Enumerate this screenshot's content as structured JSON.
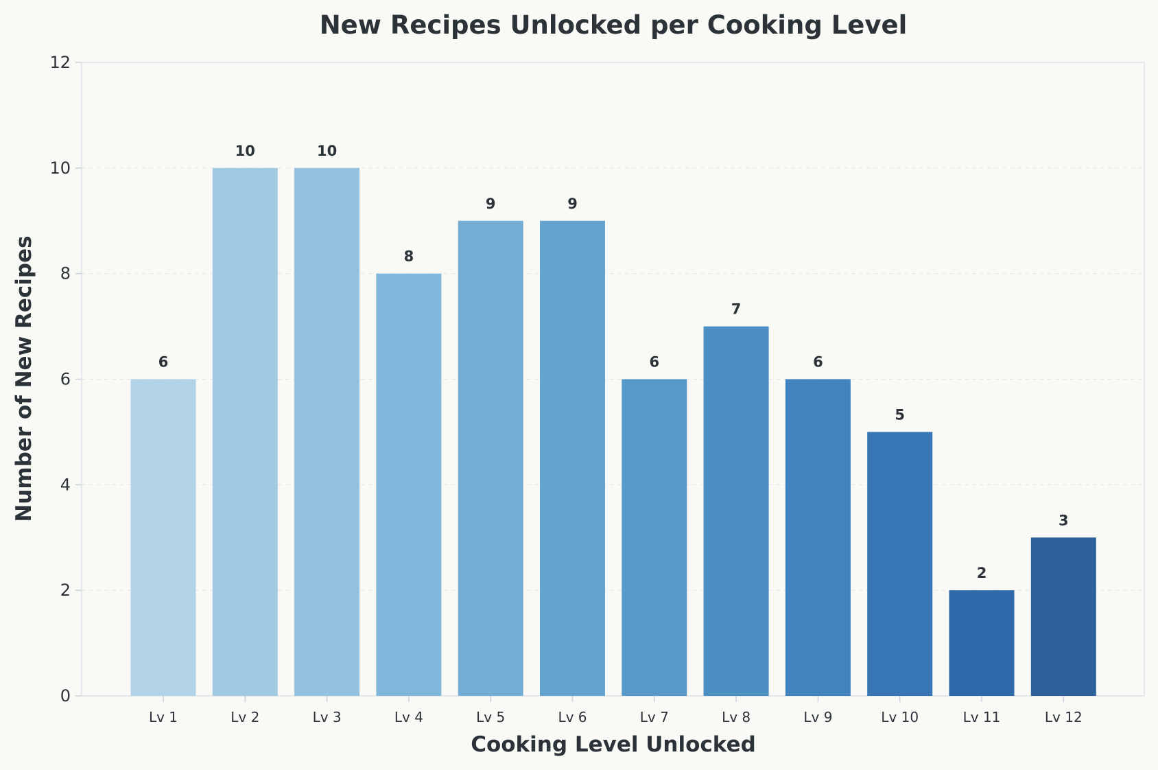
{
  "chart_data": {
    "type": "bar",
    "title": "New Recipes Unlocked per Cooking Level",
    "xlabel": "Cooking Level Unlocked",
    "ylabel": "Number of New Recipes",
    "categories": [
      "Lv 1",
      "Lv 2",
      "Lv 3",
      "Lv 4",
      "Lv 5",
      "Lv 6",
      "Lv 7",
      "Lv 8",
      "Lv 9",
      "Lv 10",
      "Lv 11",
      "Lv 12"
    ],
    "values": [
      6,
      10,
      10,
      8,
      9,
      9,
      6,
      7,
      6,
      5,
      2,
      3
    ],
    "ylim": [
      0,
      12
    ],
    "yticks": [
      0,
      2,
      4,
      6,
      8,
      10,
      12
    ],
    "grid": "horizontal dashed",
    "legend": "none",
    "colors": [
      "#b3d3e8",
      "#a2c9e2",
      "#93c1df",
      "#82b7dc",
      "#74aed5",
      "#65a4cf",
      "#5799c9",
      "#4b8fc3",
      "#4183bf",
      "#3676b5",
      "#2e69aa",
      "#2c619c"
    ]
  }
}
